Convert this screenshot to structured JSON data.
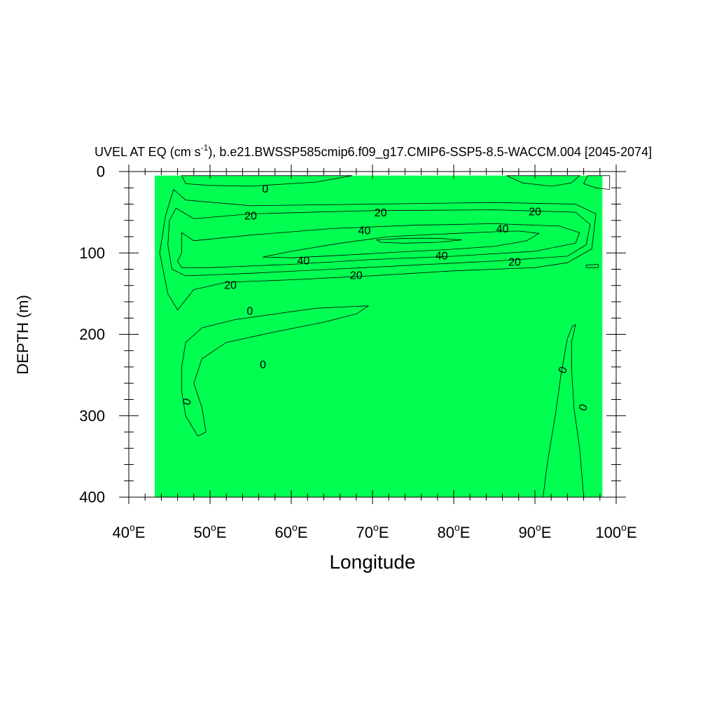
{
  "chart_data": {
    "type": "contour",
    "title": {
      "prefix": "UVEL AT EQ (cm s",
      "superscript": "-1",
      "suffix": "), b.e21.BWSSP585cmip6.f09_g17.CMIP6-SSP5-8.5-WACCM.004 [2045-2074]"
    },
    "xlabel": "Longitude",
    "ylabel": "DEPTH (m)",
    "x_range": [
      40,
      100
    ],
    "y_range": [
      0,
      400
    ],
    "y_inverted": true,
    "x_ticks": [
      {
        "value": 40,
        "label": "40",
        "deg": "o",
        "hemi": "E"
      },
      {
        "value": 50,
        "label": "50",
        "deg": "o",
        "hemi": "E"
      },
      {
        "value": 60,
        "label": "60",
        "deg": "o",
        "hemi": "E"
      },
      {
        "value": 70,
        "label": "70",
        "deg": "o",
        "hemi": "E"
      },
      {
        "value": 80,
        "label": "80",
        "deg": "o",
        "hemi": "E"
      },
      {
        "value": 90,
        "label": "90",
        "deg": "o",
        "hemi": "E"
      },
      {
        "value": 100,
        "label": "100",
        "deg": "o",
        "hemi": "E"
      }
    ],
    "y_ticks": [
      {
        "value": 0,
        "label": "0"
      },
      {
        "value": 100,
        "label": "100"
      },
      {
        "value": 200,
        "label": "200"
      },
      {
        "value": 300,
        "label": "300"
      },
      {
        "value": 400,
        "label": "400"
      }
    ],
    "contour_levels": [
      0,
      10,
      20,
      30,
      40,
      50
    ],
    "fill_colors": {
      "below_0": "#00ffc8",
      "0_to_10": "#00ff50",
      "10_to_20": "#5af000",
      "20_to_30": "#ffff00",
      "30_to_40": "#ffd232",
      "40_to_50": "#ffaa32",
      "above_50": "#ff8c32"
    },
    "regions": [
      {
        "name": "ocean-background",
        "band": "0_to_10",
        "polygon": [
          [
            43.2,
            5
          ],
          [
            98.3,
            5
          ],
          [
            98.3,
            400
          ],
          [
            43.2,
            400
          ]
        ]
      },
      {
        "name": "surface-westward-band",
        "band": "below_0",
        "polygon": [
          [
            46.5,
            5
          ],
          [
            67.5,
            5
          ],
          [
            63,
            13
          ],
          [
            55,
            18
          ],
          [
            50,
            17
          ],
          [
            47,
            15
          ]
        ]
      },
      {
        "name": "surface-westward-east",
        "band": "below_0",
        "polygon": [
          [
            86.5,
            5
          ],
          [
            95.5,
            5
          ],
          [
            94.5,
            14
          ],
          [
            92,
            18
          ],
          [
            88.5,
            14
          ]
        ]
      },
      {
        "name": "surface-westward-edge",
        "band": "below_0",
        "polygon": [
          [
            96.5,
            5
          ],
          [
            99.2,
            5
          ],
          [
            99.2,
            22
          ],
          [
            97.5,
            20
          ],
          [
            96,
            15
          ]
        ]
      },
      {
        "name": "band-10-20",
        "band": "10_to_20",
        "polygon": [
          [
            45.5,
            22
          ],
          [
            47,
            35
          ],
          [
            55,
            42
          ],
          [
            70,
            40
          ],
          [
            85,
            38
          ],
          [
            95,
            40
          ],
          [
            97.5,
            52
          ],
          [
            97,
            95
          ],
          [
            94,
            112
          ],
          [
            90,
            118
          ],
          [
            80,
            122
          ],
          [
            70,
            128
          ],
          [
            60,
            133
          ],
          [
            52,
            136
          ],
          [
            48,
            145
          ],
          [
            46,
            170
          ],
          [
            44.8,
            150
          ],
          [
            43.8,
            100
          ],
          [
            44.5,
            55
          ]
        ]
      },
      {
        "name": "band-20-30",
        "band": "20_to_30",
        "polygon": [
          [
            45.8,
            45
          ],
          [
            48,
            58
          ],
          [
            55,
            52
          ],
          [
            70,
            48
          ],
          [
            85,
            47
          ],
          [
            95,
            50
          ],
          [
            96.8,
            65
          ],
          [
            96.3,
            90
          ],
          [
            94,
            104
          ],
          [
            85,
            110
          ],
          [
            75,
            115
          ],
          [
            65,
            120
          ],
          [
            55,
            125
          ],
          [
            50,
            127
          ],
          [
            47,
            128
          ],
          [
            45.3,
            120
          ],
          [
            44.8,
            90
          ],
          [
            45,
            60
          ]
        ]
      },
      {
        "name": "band-30-40",
        "band": "30_to_40",
        "polygon": [
          [
            46.5,
            75
          ],
          [
            48,
            85
          ],
          [
            55,
            78
          ],
          [
            65,
            70
          ],
          [
            75,
            66
          ],
          [
            85,
            64
          ],
          [
            93,
            67
          ],
          [
            95.5,
            75
          ],
          [
            95,
            88
          ],
          [
            90,
            98
          ],
          [
            80,
            104
          ],
          [
            70,
            108
          ],
          [
            60,
            114
          ],
          [
            50,
            118
          ],
          [
            46.5,
            118
          ],
          [
            46,
            110
          ],
          [
            46.5,
            100
          ]
        ]
      },
      {
        "name": "band-40-50",
        "band": "40_to_50",
        "polygon": [
          [
            56.5,
            105
          ],
          [
            60,
            98
          ],
          [
            66,
            88
          ],
          [
            72,
            80
          ],
          [
            78,
            77
          ],
          [
            85,
            74
          ],
          [
            88,
            73
          ],
          [
            90.5,
            76
          ],
          [
            89,
            85
          ],
          [
            85,
            92
          ],
          [
            79,
            96
          ],
          [
            73,
            99
          ],
          [
            66,
            103
          ],
          [
            60,
            106
          ]
        ]
      },
      {
        "name": "core-above-50",
        "band": "above_50",
        "polygon": [
          [
            70.5,
            84
          ],
          [
            74,
            82
          ],
          [
            78,
            82
          ],
          [
            81,
            84
          ],
          [
            78,
            87
          ],
          [
            74,
            88
          ],
          [
            71,
            87
          ]
        ]
      },
      {
        "name": "deep-westward-west",
        "band": "below_0",
        "polygon": [
          [
            69.5,
            165
          ],
          [
            68,
            175
          ],
          [
            64,
            185
          ],
          [
            58,
            197
          ],
          [
            52,
            210
          ],
          [
            49,
            230
          ],
          [
            48,
            260
          ],
          [
            49,
            290
          ],
          [
            49.5,
            320
          ],
          [
            48.5,
            325
          ],
          [
            47,
            300
          ],
          [
            46.5,
            270
          ],
          [
            46.5,
            240
          ],
          [
            47,
            210
          ],
          [
            49,
            192
          ],
          [
            53,
            182
          ],
          [
            58,
            175
          ],
          [
            63,
            168
          ],
          [
            67,
            166
          ]
        ]
      },
      {
        "name": "deep-westward-east",
        "band": "below_0",
        "polygon": [
          [
            95,
            188
          ],
          [
            94.5,
            210
          ],
          [
            94.5,
            240
          ],
          [
            94.8,
            290
          ],
          [
            95.5,
            340
          ],
          [
            96,
            400
          ],
          [
            91,
            400
          ],
          [
            91.5,
            360
          ],
          [
            92.5,
            300
          ],
          [
            93.2,
            250
          ],
          [
            94,
            205
          ],
          [
            94.6,
            190
          ]
        ]
      },
      {
        "name": "small-westward-patch",
        "band": "below_0",
        "polygon": [
          [
            96.3,
            115
          ],
          [
            97.8,
            114
          ],
          [
            97.8,
            118
          ],
          [
            96.3,
            118
          ]
        ]
      }
    ],
    "contour_labels": [
      {
        "text": "0",
        "x": 56.8,
        "y": 22
      },
      {
        "text": "20",
        "x": 55,
        "y": 55
      },
      {
        "text": "20",
        "x": 71,
        "y": 51
      },
      {
        "text": "20",
        "x": 90,
        "y": 50
      },
      {
        "text": "40",
        "x": 69,
        "y": 73
      },
      {
        "text": "40",
        "x": 86,
        "y": 71
      },
      {
        "text": "40",
        "x": 61.5,
        "y": 110
      },
      {
        "text": "40",
        "x": 78.5,
        "y": 104
      },
      {
        "text": "20",
        "x": 87.5,
        "y": 112
      },
      {
        "text": "20",
        "x": 68,
        "y": 128
      },
      {
        "text": "20",
        "x": 52.5,
        "y": 140
      },
      {
        "text": "0",
        "x": 54.9,
        "y": 172
      },
      {
        "text": "0",
        "x": 56.5,
        "y": 238
      },
      {
        "text": "0",
        "x": 47.2,
        "y": 283,
        "rotate": -70
      },
      {
        "text": "0",
        "x": 93.5,
        "y": 244,
        "rotate": -70
      },
      {
        "text": "0",
        "x": 96,
        "y": 290,
        "rotate": -70
      }
    ]
  }
}
